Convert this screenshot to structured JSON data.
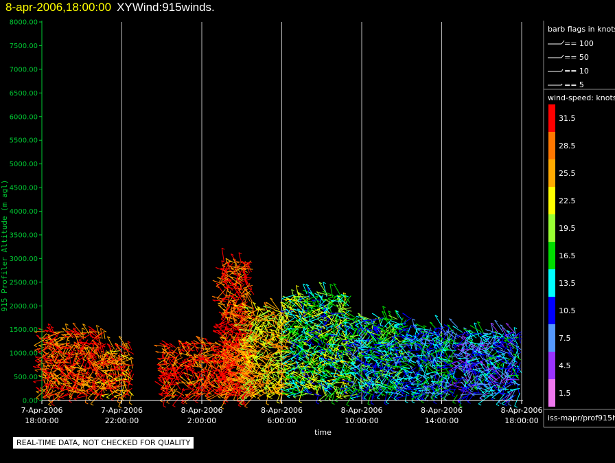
{
  "header": {
    "date_label": "8-apr-2006,18:00:00",
    "title": "XYWind:915winds."
  },
  "colors": {
    "axis": "#00cc33",
    "grid": "#bbbbbb",
    "background": "#000000"
  },
  "legend": {
    "barb_title": "barb flags in knots",
    "barbs": [
      {
        "label": "== 100",
        "knots": 100
      },
      {
        "label": "== 50",
        "knots": 50
      },
      {
        "label": "== 10",
        "knots": 10
      },
      {
        "label": "== 5",
        "knots": 5
      }
    ],
    "speed_title": "wind-speed: knots",
    "scale": [
      {
        "label": "31.5",
        "color": "#ff0000"
      },
      {
        "label": "28.5",
        "color": "#ff7700"
      },
      {
        "label": "25.5",
        "color": "#ffaa00"
      },
      {
        "label": "22.5",
        "color": "#ffff00"
      },
      {
        "label": "19.5",
        "color": "#99ff33"
      },
      {
        "label": "16.5",
        "color": "#00dd00"
      },
      {
        "label": "13.5",
        "color": "#00ffff"
      },
      {
        "label": "10.5",
        "color": "#0000ff"
      },
      {
        "label": "7.5",
        "color": "#5599ff"
      },
      {
        "label": "4.5",
        "color": "#9933ff"
      },
      {
        "label": "1.5",
        "color": "#ee77ee"
      }
    ],
    "source_label": "iss-mapr/prof915h"
  },
  "notice": "REAL-TIME DATA, NOT CHECKED FOR QUALITY",
  "chart_data": {
    "type": "scatter",
    "title": "XYWind:915winds.",
    "xlabel": "time",
    "ylabel": "915 Profiler Altitude (m agl)",
    "ylim": [
      0,
      8000
    ],
    "xlim_hours": [
      0,
      24
    ],
    "y_ticks": [
      "0.00",
      "500.00",
      "1000.00",
      "1500.00",
      "2000.00",
      "2500.00",
      "3000.00",
      "3500.00",
      "4000.00",
      "4500.00",
      "5000.00",
      "5500.00",
      "6000.00",
      "6500.00",
      "7000.00",
      "7500.00",
      "8000.00"
    ],
    "x_ticks": [
      {
        "date": "7-Apr-2006",
        "time": "18:00:00",
        "hour": 0
      },
      {
        "date": "7-Apr-2006",
        "time": "22:00:00",
        "hour": 4
      },
      {
        "date": "8-Apr-2006",
        "time": "2:00:00",
        "hour": 8
      },
      {
        "date": "8-Apr-2006",
        "time": "6:00:00",
        "hour": 12
      },
      {
        "date": "8-Apr-2006",
        "time": "10:00:00",
        "hour": 16
      },
      {
        "date": "8-Apr-2006",
        "time": "14:00:00",
        "hour": 20
      },
      {
        "date": "8-Apr-2006",
        "time": "18:00:00",
        "hour": 24
      }
    ],
    "grid": true,
    "legend_position": "right",
    "series": [
      {
        "hours": [
          0.1,
          3.2
        ],
        "top_m": 1500,
        "speed_kt": 30
      },
      {
        "hours": [
          3.2,
          4.6
        ],
        "top_m": 1150,
        "speed_kt": 28
      },
      {
        "hours": [
          6.1,
          7.1
        ],
        "top_m": 1200,
        "speed_kt": 31
      },
      {
        "hours": [
          7.3,
          10.8
        ],
        "top_m": 1250,
        "speed_kt": 30
      },
      {
        "hours": [
          9.1,
          10.6
        ],
        "top_m": 3000,
        "speed_kt": 31
      },
      {
        "hours": [
          10.3,
          12.5
        ],
        "top_m": 2000,
        "speed_kt": 24
      },
      {
        "hours": [
          12.5,
          15.5
        ],
        "top_m": 2300,
        "speed_kt": 17
      },
      {
        "hours": [
          15.5,
          18.5
        ],
        "top_m": 1800,
        "speed_kt": 14
      },
      {
        "hours": [
          18.5,
          20.8
        ],
        "top_m": 1600,
        "speed_kt": 12
      },
      {
        "hours": [
          21.0,
          24.0
        ],
        "top_m": 1500,
        "speed_kt": 10
      }
    ]
  }
}
